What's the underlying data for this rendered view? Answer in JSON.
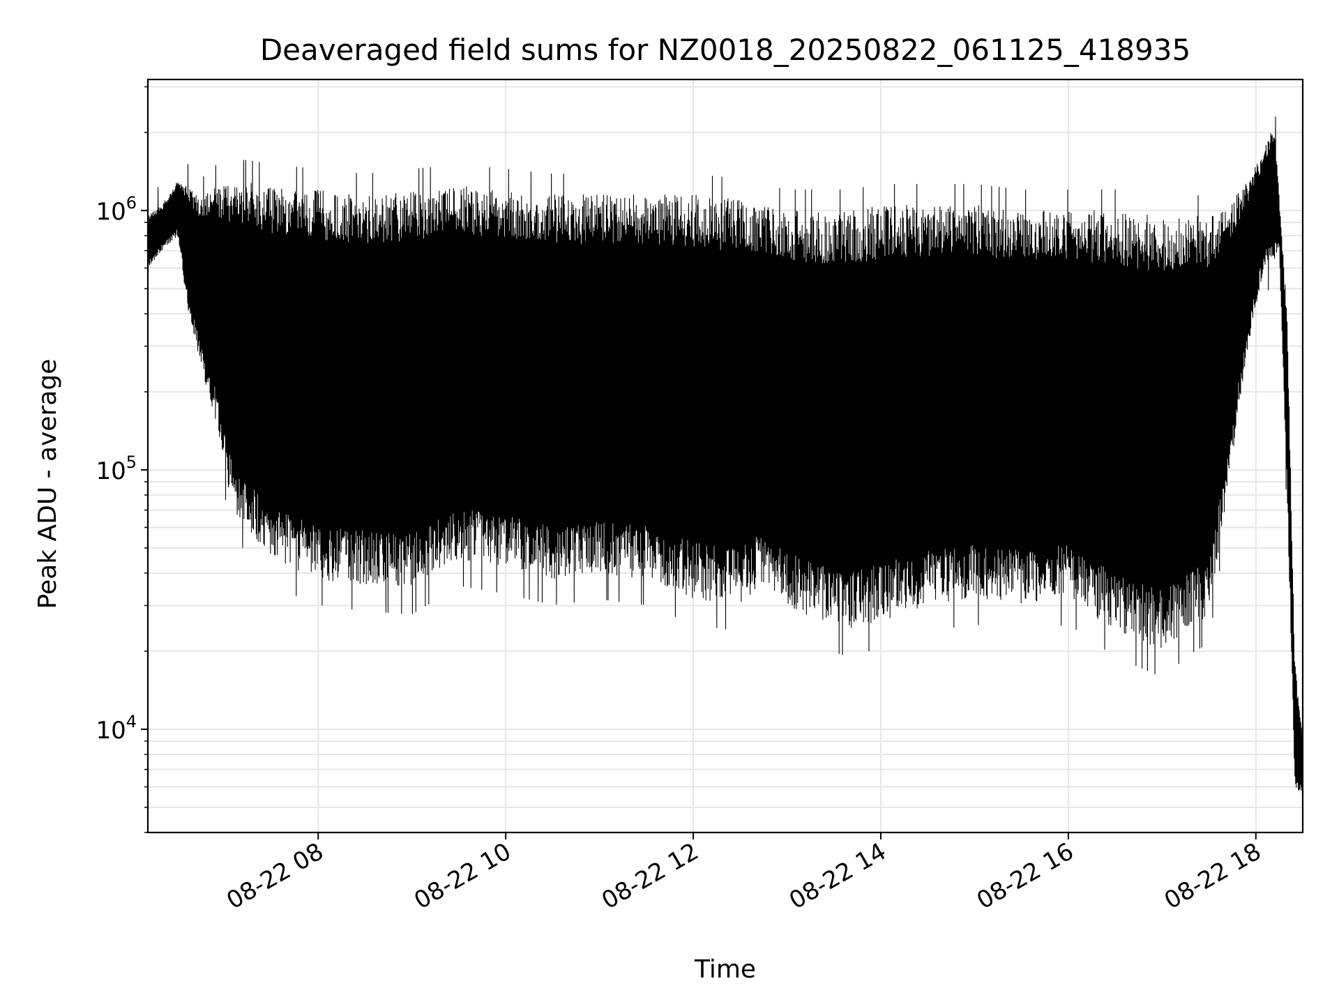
{
  "chart_data": {
    "type": "line",
    "title": "Deaveraged field sums for NZ0018_20250822_061125_418935",
    "xlabel": "Time",
    "ylabel": "Peak ADU - average",
    "yscale": "log",
    "xlim": [
      "2025-08-22 06:11",
      "2025-08-22 18:30"
    ],
    "ylim": [
      4000,
      3200000
    ],
    "grid": true,
    "line_color": "#000000",
    "grid_color": "#e6e6e6",
    "x_ticks": [
      {
        "value": "2025-08-22 08:00",
        "label": "08-22 08"
      },
      {
        "value": "2025-08-22 10:00",
        "label": "08-22 10"
      },
      {
        "value": "2025-08-22 12:00",
        "label": "08-22 12"
      },
      {
        "value": "2025-08-22 14:00",
        "label": "08-22 14"
      },
      {
        "value": "2025-08-22 16:00",
        "label": "08-22 16"
      },
      {
        "value": "2025-08-22 18:00",
        "label": "08-22 18"
      }
    ],
    "y_ticks": [
      {
        "value": 10000,
        "base": "10",
        "exp": "4"
      },
      {
        "value": 100000,
        "base": "10",
        "exp": "5"
      },
      {
        "value": 1000000,
        "base": "10",
        "exp": "6"
      }
    ],
    "envelope": {
      "time": [
        "2025-08-22 06:11",
        "2025-08-22 06:20",
        "2025-08-22 06:30",
        "2025-08-22 06:37",
        "2025-08-22 06:45",
        "2025-08-22 06:55",
        "2025-08-22 07:05",
        "2025-08-22 07:15",
        "2025-08-22 07:30",
        "2025-08-22 08:00",
        "2025-08-22 08:30",
        "2025-08-22 09:00",
        "2025-08-22 09:30",
        "2025-08-22 10:00",
        "2025-08-22 10:30",
        "2025-08-22 11:00",
        "2025-08-22 11:30",
        "2025-08-22 12:00",
        "2025-08-22 12:30",
        "2025-08-22 12:40",
        "2025-08-22 13:00",
        "2025-08-22 13:20",
        "2025-08-22 13:40",
        "2025-08-22 14:00",
        "2025-08-22 14:30",
        "2025-08-22 15:00",
        "2025-08-22 15:30",
        "2025-08-22 16:00",
        "2025-08-22 16:30",
        "2025-08-22 17:00",
        "2025-08-22 17:20",
        "2025-08-22 17:30",
        "2025-08-22 17:40",
        "2025-08-22 17:55",
        "2025-08-22 18:05",
        "2025-08-22 18:12",
        "2025-08-22 18:15",
        "2025-08-22 18:20",
        "2025-08-22 18:25",
        "2025-08-22 18:30"
      ],
      "high": [
        950000,
        1050000,
        1300000,
        1250000,
        1100000,
        1250000,
        1300000,
        1300000,
        1250000,
        1200000,
        1150000,
        1200000,
        1250000,
        1200000,
        1150000,
        1150000,
        1150000,
        1150000,
        1100000,
        1050000,
        1000000,
        1000000,
        1000000,
        1050000,
        1050000,
        1050000,
        1000000,
        1000000,
        1000000,
        950000,
        950000,
        950000,
        1000000,
        1300000,
        1700000,
        2200000,
        1100000,
        400000,
        18000,
        9000
      ],
      "low": [
        600000,
        700000,
        800000,
        400000,
        250000,
        150000,
        70000,
        60000,
        45000,
        38000,
        36000,
        35000,
        45000,
        42000,
        38000,
        40000,
        38000,
        32000,
        30000,
        35000,
        30000,
        26000,
        24000,
        26000,
        30000,
        32000,
        30000,
        32000,
        24000,
        20000,
        25000,
        27000,
        70000,
        300000,
        600000,
        650000,
        700000,
        80000,
        6000,
        5500
      ]
    }
  }
}
